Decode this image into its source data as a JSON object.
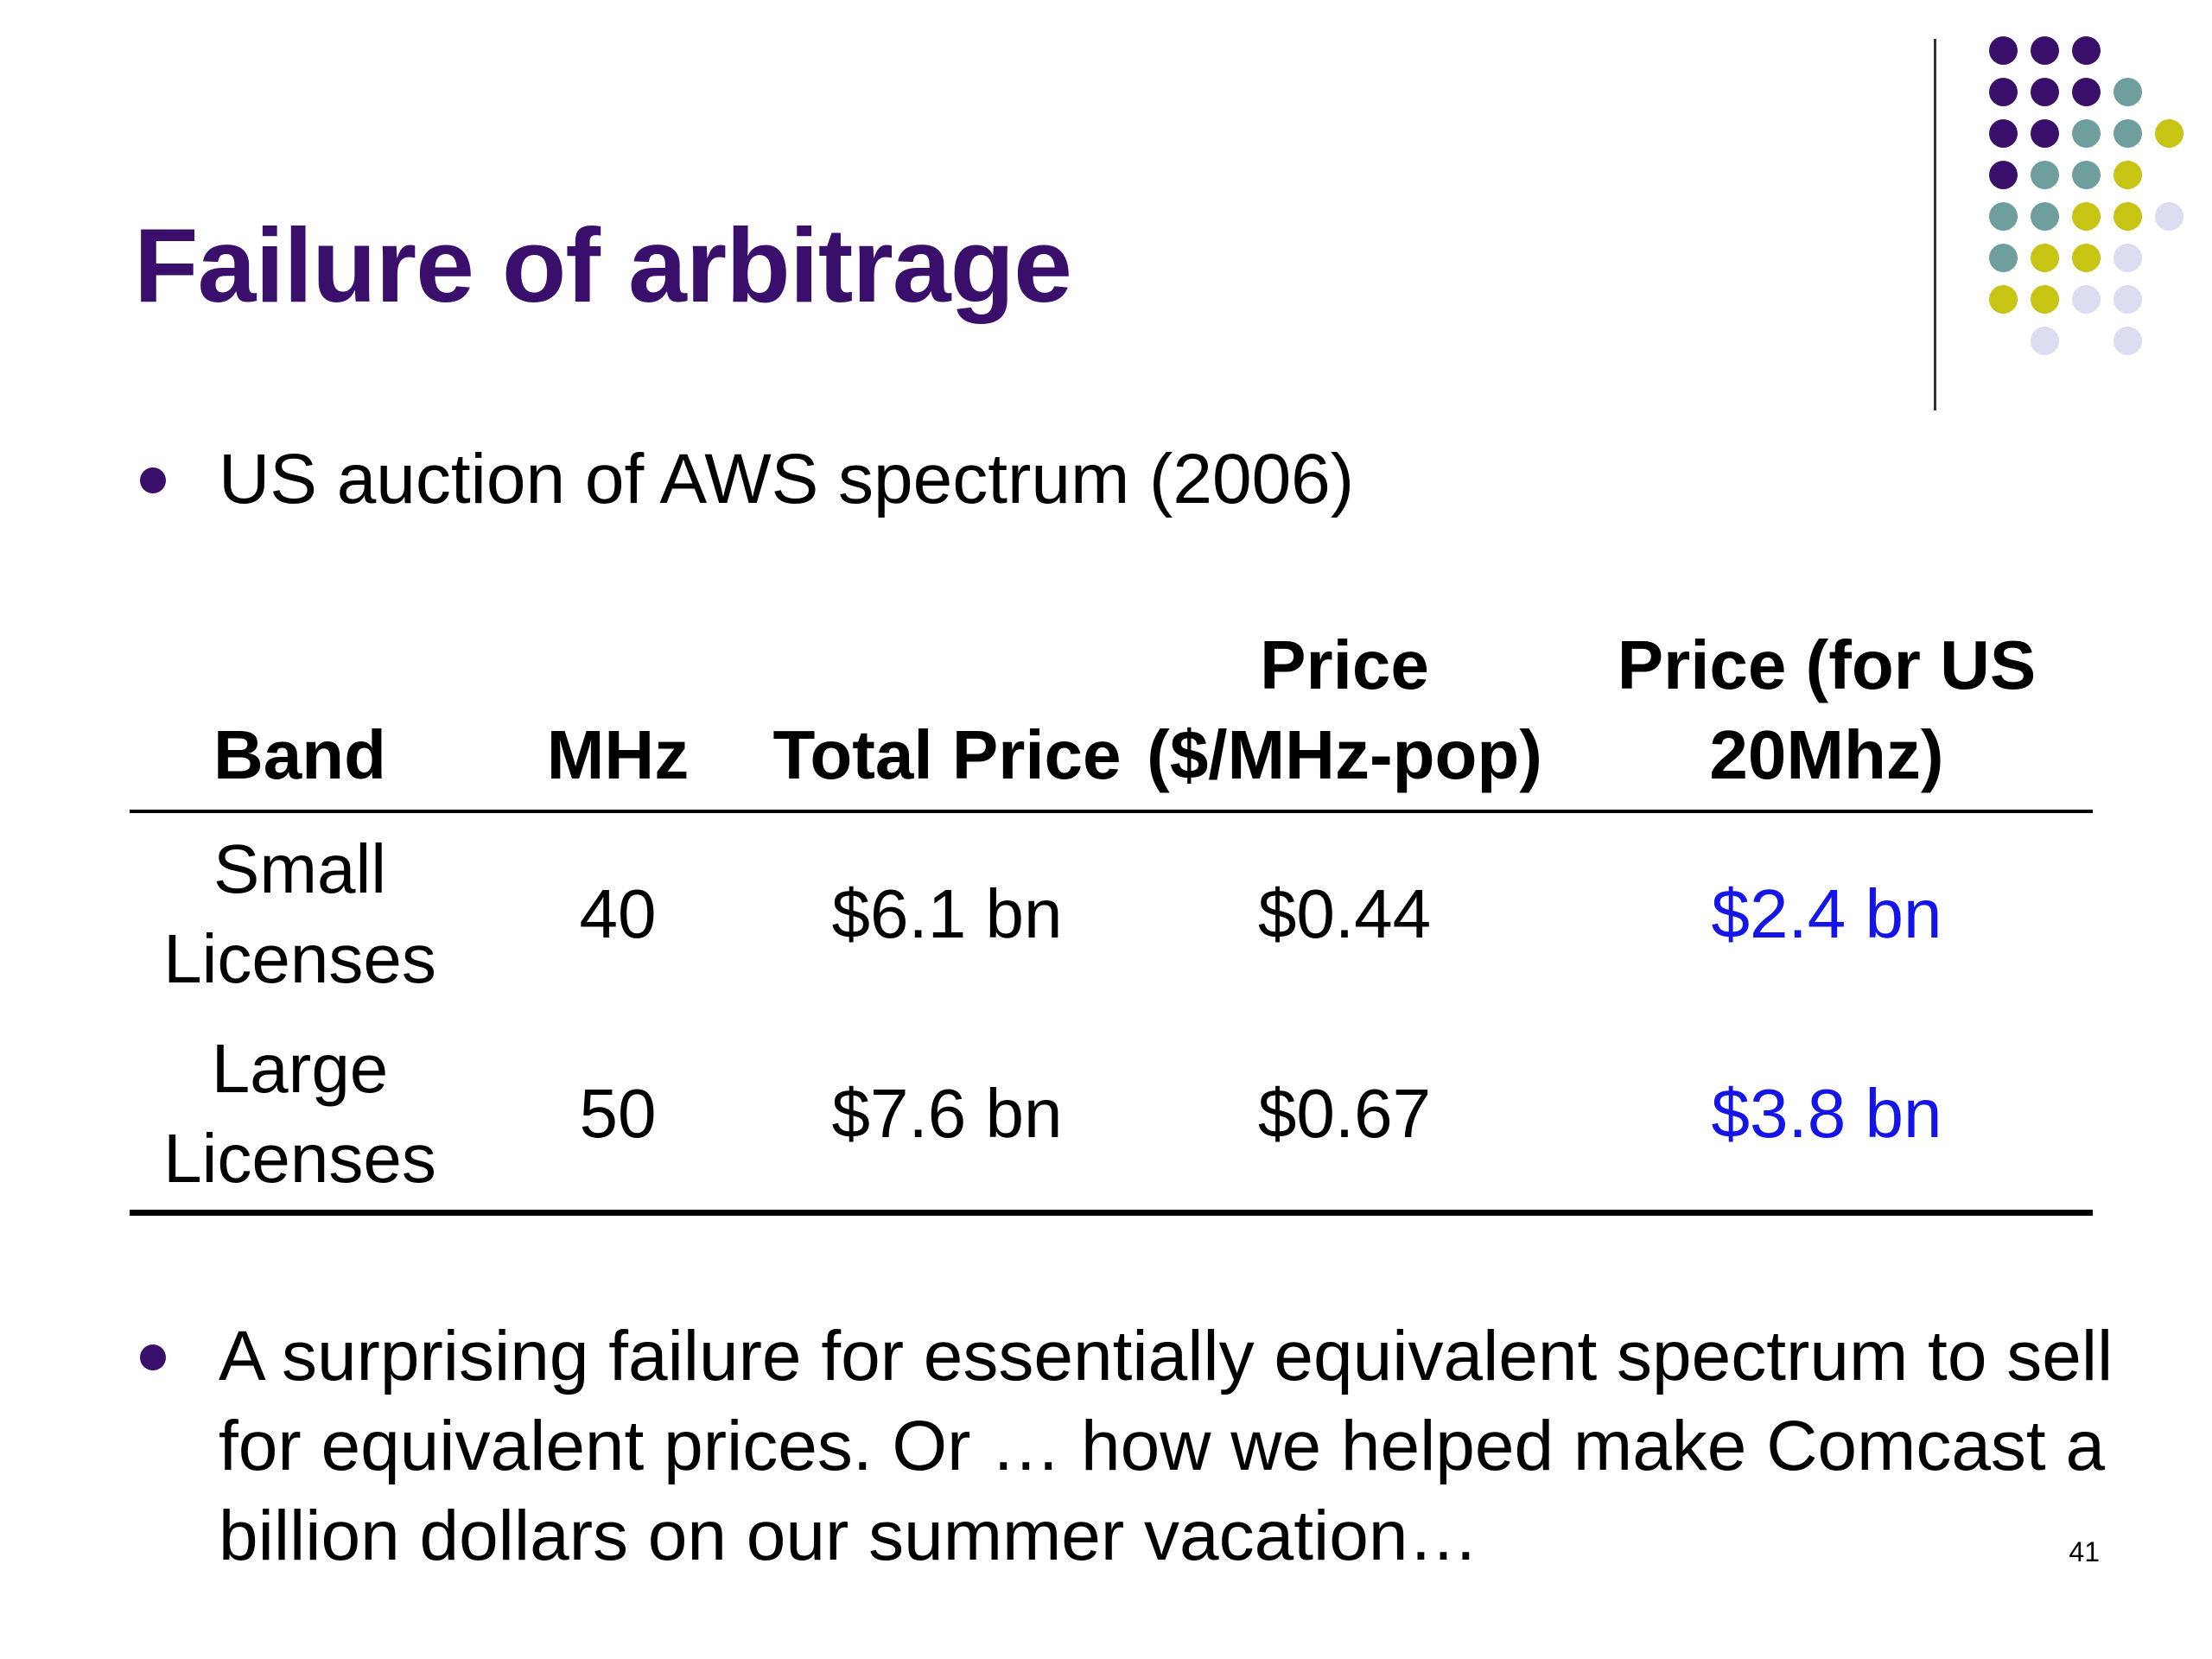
{
  "slide": {
    "title": "Failure of arbitrage",
    "bullet1": "US auction of AWS spectrum (2006)",
    "bullet2": "A surprising failure for essentially equivalent spectrum to sell for equivalent prices. Or … how we helped make Comcast a billion dollars on our summer vacation…",
    "page_number": "41"
  },
  "table": {
    "headers": {
      "band": "Band",
      "mhz": "MHz",
      "total_price": "Total Price",
      "price_per_mhz_pop": "Price ($/MHz-pop)",
      "price_us_20mhz": "Price (for US 20Mhz)"
    },
    "rows": [
      {
        "band": "Small Licenses",
        "mhz": "40",
        "total_price": "$6.1 bn",
        "price_per_mhz_pop": "$0.44",
        "price_us_20mhz": "$2.4 bn"
      },
      {
        "band": "Large Licenses",
        "mhz": "50",
        "total_price": "$7.6 bn",
        "price_per_mhz_pop": "$0.67",
        "price_us_20mhz": "$3.8 bn"
      }
    ]
  },
  "colors": {
    "title": "#3a0f6b",
    "highlight": "#1414e6",
    "dot_purple": "#3a0f6b",
    "dot_teal": "#6e9f9c",
    "dot_olive": "#c8c414",
    "dot_lavender": "#dcdcf0"
  }
}
